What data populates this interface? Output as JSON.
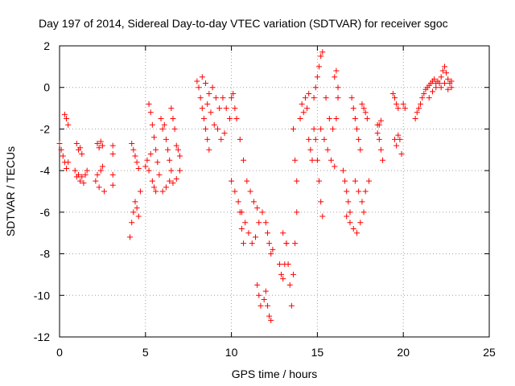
{
  "chart_data": {
    "type": "scatter",
    "title": "Day 197 of 2014, Sidereal Day-to-day VTEC variation (SDTVAR) for receiver sgoc",
    "xlabel": "GPS time / hours",
    "ylabel": "SDTVAR / TECUs",
    "xlim": [
      0,
      25
    ],
    "ylim": [
      -12,
      2
    ],
    "xticks": [
      0,
      5,
      10,
      15,
      20,
      25
    ],
    "yticks": [
      2,
      0,
      -2,
      -4,
      -6,
      -8,
      -10,
      -12
    ],
    "xtick_labels": [
      "0",
      "5",
      "10",
      "15",
      "20",
      "25"
    ],
    "ytick_labels": [
      "2",
      "0",
      "-2",
      "-4",
      "-6",
      "-8",
      "-10",
      "-12"
    ],
    "grid": true,
    "marker": "+",
    "color": "#ff0000",
    "series": [
      {
        "name": "sgoc",
        "points": [
          [
            0.0,
            -2.7
          ],
          [
            0.1,
            -3.0
          ],
          [
            0.2,
            -3.3
          ],
          [
            0.3,
            -3.6
          ],
          [
            0.4,
            -3.9
          ],
          [
            0.5,
            -3.6
          ],
          [
            0.3,
            -1.3
          ],
          [
            0.4,
            -1.5
          ],
          [
            0.5,
            -1.8
          ],
          [
            0.9,
            -4.0
          ],
          [
            1.0,
            -4.3
          ],
          [
            1.1,
            -4.2
          ],
          [
            1.2,
            -4.5
          ],
          [
            1.3,
            -4.3
          ],
          [
            1.4,
            -4.6
          ],
          [
            1.5,
            -4.2
          ],
          [
            1.6,
            -4.0
          ],
          [
            1.0,
            -2.7
          ],
          [
            1.1,
            -3.0
          ],
          [
            1.2,
            -2.9
          ],
          [
            1.3,
            -3.2
          ],
          [
            2.1,
            -4.5
          ],
          [
            2.2,
            -4.2
          ],
          [
            2.3,
            -4.8
          ],
          [
            2.4,
            -4.0
          ],
          [
            2.5,
            -3.8
          ],
          [
            2.6,
            -5.0
          ],
          [
            2.2,
            -2.7
          ],
          [
            2.3,
            -2.9
          ],
          [
            2.4,
            -2.6
          ],
          [
            2.5,
            -2.8
          ],
          [
            3.1,
            -2.8
          ],
          [
            3.1,
            -3.2
          ],
          [
            3.1,
            -4.2
          ],
          [
            3.1,
            -4.7
          ],
          [
            4.1,
            -7.2
          ],
          [
            4.2,
            -6.5
          ],
          [
            4.3,
            -6.0
          ],
          [
            4.4,
            -5.5
          ],
          [
            4.5,
            -5.8
          ],
          [
            4.6,
            -6.2
          ],
          [
            4.7,
            -5.0
          ],
          [
            4.2,
            -2.7
          ],
          [
            4.3,
            -3.0
          ],
          [
            4.4,
            -3.3
          ],
          [
            4.5,
            -3.6
          ],
          [
            4.6,
            -3.9
          ],
          [
            5.0,
            -3.8
          ],
          [
            5.1,
            -3.5
          ],
          [
            5.2,
            -4.0
          ],
          [
            5.3,
            -3.2
          ],
          [
            5.4,
            -4.5
          ],
          [
            5.5,
            -4.8
          ],
          [
            5.6,
            -5.0
          ],
          [
            5.2,
            -0.8
          ],
          [
            5.3,
            -1.2
          ],
          [
            5.4,
            -1.8
          ],
          [
            5.5,
            -2.4
          ],
          [
            5.6,
            -3.0
          ],
          [
            5.7,
            -3.6
          ],
          [
            5.8,
            -4.2
          ],
          [
            5.9,
            -1.5
          ],
          [
            6.0,
            -2.0
          ],
          [
            6.1,
            -1.8
          ],
          [
            6.2,
            -2.5
          ],
          [
            6.3,
            -3.0
          ],
          [
            6.4,
            -3.5
          ],
          [
            6.5,
            -4.0
          ],
          [
            6.0,
            -5.0
          ],
          [
            6.2,
            -4.8
          ],
          [
            6.4,
            -4.5
          ],
          [
            6.6,
            -4.6
          ],
          [
            6.8,
            -4.4
          ],
          [
            7.0,
            -4.0
          ],
          [
            6.5,
            -1.0
          ],
          [
            6.6,
            -1.5
          ],
          [
            6.7,
            -2.0
          ],
          [
            6.8,
            -2.8
          ],
          [
            6.9,
            -3.0
          ],
          [
            7.0,
            -3.3
          ],
          [
            8.0,
            0.3
          ],
          [
            8.1,
            0.0
          ],
          [
            8.2,
            -0.5
          ],
          [
            8.3,
            -1.0
          ],
          [
            8.4,
            -1.5
          ],
          [
            8.5,
            -2.0
          ],
          [
            8.6,
            -2.5
          ],
          [
            8.7,
            -3.0
          ],
          [
            8.3,
            0.5
          ],
          [
            8.5,
            0.2
          ],
          [
            8.7,
            -0.3
          ],
          [
            8.9,
            0.0
          ],
          [
            9.1,
            -0.5
          ],
          [
            9.3,
            -1.0
          ],
          [
            8.6,
            -0.8
          ],
          [
            8.8,
            -1.2
          ],
          [
            9.0,
            -1.8
          ],
          [
            9.2,
            -2.0
          ],
          [
            9.4,
            -2.5
          ],
          [
            9.6,
            -2.2
          ],
          [
            9.5,
            -0.5
          ],
          [
            9.7,
            -1.0
          ],
          [
            9.9,
            -1.5
          ],
          [
            10.0,
            -0.5
          ],
          [
            10.1,
            -0.3
          ],
          [
            10.2,
            -1.0
          ],
          [
            10.0,
            -4.5
          ],
          [
            10.2,
            -5.0
          ],
          [
            10.4,
            -5.5
          ],
          [
            10.6,
            -6.0
          ],
          [
            10.8,
            -6.5
          ],
          [
            11.0,
            -7.0
          ],
          [
            10.3,
            -1.5
          ],
          [
            10.5,
            -2.5
          ],
          [
            10.7,
            -3.5
          ],
          [
            10.9,
            -4.5
          ],
          [
            11.1,
            -5.0
          ],
          [
            11.3,
            -5.5
          ],
          [
            11.5,
            -5.8
          ],
          [
            11.2,
            -7.5
          ],
          [
            11.4,
            -7.2
          ],
          [
            11.6,
            -6.5
          ],
          [
            11.8,
            -6.0
          ],
          [
            10.5,
            -6.0
          ],
          [
            10.6,
            -6.8
          ],
          [
            10.7,
            -7.5
          ],
          [
            11.5,
            -9.5
          ],
          [
            11.6,
            -10.0
          ],
          [
            11.7,
            -10.5
          ],
          [
            11.9,
            -10.2
          ],
          [
            12.0,
            -9.8
          ],
          [
            12.1,
            -10.5
          ],
          [
            12.2,
            -11.0
          ],
          [
            12.3,
            -11.2
          ],
          [
            12.0,
            -6.5
          ],
          [
            12.1,
            -7.0
          ],
          [
            12.2,
            -7.5
          ],
          [
            12.3,
            -8.0
          ],
          [
            12.4,
            -7.8
          ],
          [
            12.8,
            -8.5
          ],
          [
            12.9,
            -9.0
          ],
          [
            13.0,
            -9.2
          ],
          [
            13.1,
            -8.5
          ],
          [
            13.2,
            -7.5
          ],
          [
            13.0,
            -7.0
          ],
          [
            13.2,
            -7.5
          ],
          [
            13.3,
            -8.5
          ],
          [
            13.4,
            -9.5
          ],
          [
            13.5,
            -10.5
          ],
          [
            13.6,
            -9.0
          ],
          [
            13.7,
            -7.5
          ],
          [
            13.8,
            -6.0
          ],
          [
            13.6,
            -2.0
          ],
          [
            13.7,
            -3.5
          ],
          [
            13.8,
            -4.5
          ],
          [
            14.0,
            -1.5
          ],
          [
            14.1,
            -0.8
          ],
          [
            14.2,
            -1.2
          ],
          [
            14.3,
            -0.5
          ],
          [
            14.4,
            -1.0
          ],
          [
            14.5,
            -0.3
          ],
          [
            14.5,
            -2.5
          ],
          [
            14.6,
            -3.0
          ],
          [
            14.7,
            -3.5
          ],
          [
            14.8,
            -2.0
          ],
          [
            14.8,
            -0.5
          ],
          [
            14.9,
            0.0
          ],
          [
            15.0,
            0.5
          ],
          [
            15.1,
            1.0
          ],
          [
            15.2,
            1.5
          ],
          [
            15.3,
            1.7
          ],
          [
            14.9,
            -2.5
          ],
          [
            15.0,
            -3.5
          ],
          [
            15.1,
            -4.5
          ],
          [
            15.2,
            -5.5
          ],
          [
            15.3,
            -6.2
          ],
          [
            15.2,
            -2.0
          ],
          [
            15.4,
            -2.5
          ],
          [
            15.6,
            -3.0
          ],
          [
            15.8,
            -3.5
          ],
          [
            16.0,
            -3.8
          ],
          [
            15.5,
            -0.5
          ],
          [
            15.7,
            -1.5
          ],
          [
            15.9,
            -2.0
          ],
          [
            16.1,
            -1.5
          ],
          [
            16.2,
            0.0
          ],
          [
            16.0,
            0.5
          ],
          [
            16.1,
            0.8
          ],
          [
            16.2,
            -0.5
          ],
          [
            16.5,
            -4.0
          ],
          [
            16.6,
            -4.5
          ],
          [
            16.7,
            -5.0
          ],
          [
            16.8,
            -5.5
          ],
          [
            16.9,
            -6.0
          ],
          [
            16.7,
            -6.2
          ],
          [
            16.9,
            -6.5
          ],
          [
            17.1,
            -6.8
          ],
          [
            17.3,
            -7.0
          ],
          [
            17.5,
            -6.5
          ],
          [
            17.7,
            -6.0
          ],
          [
            17.2,
            -4.5
          ],
          [
            17.4,
            -5.0
          ],
          [
            17.6,
            -5.5
          ],
          [
            17.8,
            -5.0
          ],
          [
            18.0,
            -4.5
          ],
          [
            17.0,
            -0.5
          ],
          [
            17.1,
            -1.0
          ],
          [
            17.2,
            -1.5
          ],
          [
            17.3,
            -2.0
          ],
          [
            17.4,
            -2.5
          ],
          [
            17.5,
            -3.0
          ],
          [
            17.6,
            -0.8
          ],
          [
            17.7,
            -1.0
          ],
          [
            17.8,
            -1.2
          ],
          [
            17.9,
            -1.5
          ],
          [
            18.5,
            -1.8
          ],
          [
            18.6,
            -2.5
          ],
          [
            18.7,
            -3.0
          ],
          [
            18.8,
            -3.5
          ],
          [
            18.5,
            -2.2
          ],
          [
            18.6,
            -1.8
          ],
          [
            18.7,
            -1.6
          ],
          [
            19.4,
            -0.3
          ],
          [
            19.5,
            -0.5
          ],
          [
            19.6,
            -0.8
          ],
          [
            19.7,
            -1.0
          ],
          [
            19.5,
            -2.5
          ],
          [
            19.6,
            -2.8
          ],
          [
            19.7,
            -2.3
          ],
          [
            19.8,
            -2.5
          ],
          [
            19.9,
            -3.2
          ],
          [
            20.0,
            -0.8
          ],
          [
            20.1,
            -1.0
          ],
          [
            20.7,
            -1.5
          ],
          [
            20.8,
            -1.2
          ],
          [
            20.9,
            -1.0
          ],
          [
            21.0,
            -0.8
          ],
          [
            21.1,
            -0.5
          ],
          [
            21.2,
            -0.3
          ],
          [
            21.3,
            -0.1
          ],
          [
            21.4,
            0.0
          ],
          [
            21.5,
            0.1
          ],
          [
            21.6,
            0.2
          ],
          [
            21.7,
            0.3
          ],
          [
            21.8,
            0.4
          ],
          [
            21.9,
            0.2
          ],
          [
            22.0,
            0.3
          ],
          [
            21.5,
            -0.5
          ],
          [
            21.7,
            -0.2
          ],
          [
            21.9,
            0.0
          ],
          [
            22.1,
            0.2
          ],
          [
            22.2,
            0.5
          ],
          [
            22.3,
            0.8
          ],
          [
            22.4,
            1.0
          ],
          [
            22.5,
            0.7
          ],
          [
            22.6,
            0.4
          ],
          [
            22.7,
            0.2
          ],
          [
            22.8,
            0.0
          ],
          [
            22.2,
            0.0
          ],
          [
            22.4,
            0.2
          ],
          [
            22.6,
            -0.1
          ],
          [
            22.8,
            0.3
          ]
        ]
      }
    ]
  }
}
